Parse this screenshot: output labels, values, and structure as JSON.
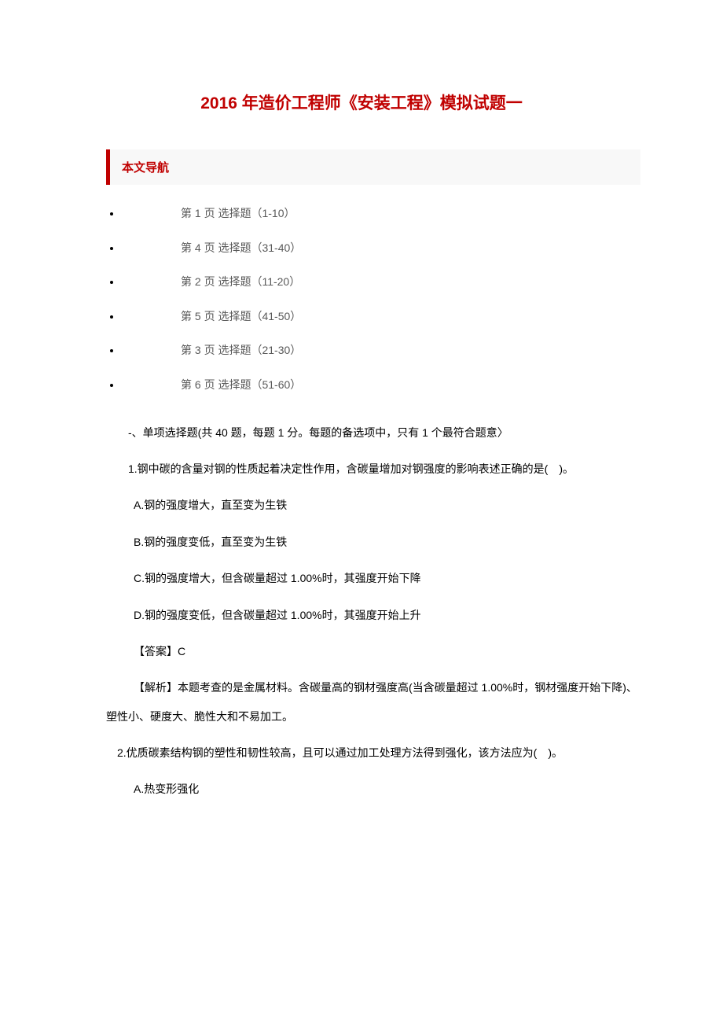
{
  "title": "2016 年造价工程师《安装工程》模拟试题一",
  "nav_header": "本文导航",
  "nav_items": [
    "第 1 页  选择题（1-10）",
    "第 4 页  选择题（31-40）",
    "第 2 页  选择题（11-20）",
    "第 5 页  选择题（41-50）",
    "第 3 页  选择题（21-30）",
    "第 6 页  选择题（51-60）"
  ],
  "section_header": "-、单项选择题(共 40 题，每题 1 分。每题的备选项中，只有 1 个最符合题意〉",
  "question1": {
    "stem": "1.钢中碳的含量对钢的性质起着决定性作用，含碳量增加对钢强度的影响表述正确的是(　)。",
    "options": [
      "A.钢的强度增大，直至变为生铁",
      "B.钢的强度变低，直至变为生铁",
      "C.钢的强度增大，但含碳量超过 1.00%时，其强度开始下降",
      "D.钢的强度变低，但含碳量超过 1.00%时，其强度开始上升"
    ],
    "answer": "【答案】C",
    "explanation": "【解析】本题考查的是金属材料。含碳量高的钢材强度高(当含碳量超过 1.00%时，钢材强度开始下降)、塑性小、硬度大、脆性大和不易加工。"
  },
  "question2": {
    "stem": "2.优质碳素结构钢的塑性和韧性较高，且可以通过加工处理方法得到强化，该方法应为(　)。",
    "options": [
      "A.热变形强化"
    ]
  },
  "colors": {
    "title_color": "#c00000",
    "nav_header_color": "#c00000",
    "nav_header_bg": "#f8f8f8",
    "nav_border_color": "#c00000",
    "nav_text_color": "#595959",
    "body_text_color": "#000000",
    "background": "#ffffff"
  },
  "typography": {
    "title_fontsize": 21,
    "nav_header_fontsize": 15,
    "nav_item_fontsize": 14,
    "body_fontsize": 14
  }
}
